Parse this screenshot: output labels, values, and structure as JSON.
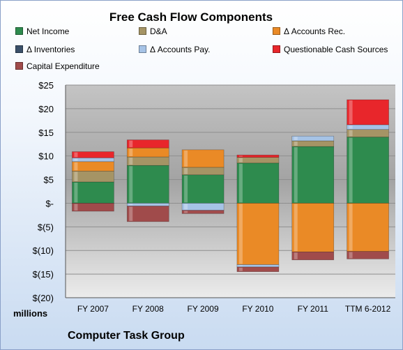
{
  "chart_data": {
    "type": "bar",
    "stacked": true,
    "title": "Free Cash Flow Components",
    "subtitle": "Computer Task Group",
    "units_label": "millions",
    "categories": [
      "FY 2007",
      "FY 2008",
      "FY 2009",
      "FY 2010",
      "FY 2011",
      "TTM 6-2012"
    ],
    "ylim": [
      -20,
      25
    ],
    "yticks": [
      25,
      20,
      15,
      10,
      5,
      0,
      -5,
      -10,
      -15,
      -20
    ],
    "ytick_labels": [
      "$25",
      "$20",
      "$15",
      "$10",
      "$5",
      "$-",
      "$(5)",
      "$(10)",
      "$(15)",
      "$(20)"
    ],
    "grid": true,
    "legend_position": "top",
    "series": [
      {
        "name": "Net Income",
        "color": "#2e8b4e",
        "values": [
          4.5,
          8.0,
          6.0,
          8.5,
          12.0,
          14.0
        ]
      },
      {
        "name": "D&A",
        "color": "#a59465",
        "values": [
          2.3,
          1.8,
          1.6,
          1.2,
          1.2,
          1.6
        ]
      },
      {
        "name": "Δ Accounts Rec.",
        "color": "#ea8a26",
        "values": [
          2.0,
          1.9,
          3.7,
          -13.0,
          -10.3,
          -10.2
        ]
      },
      {
        "name": "Δ Inventories",
        "color": "#3b5069",
        "values": [
          0,
          0,
          0,
          0,
          0,
          0
        ]
      },
      {
        "name": "Δ Accounts Pay.",
        "color": "#a6c3e6",
        "values": [
          0.8,
          -0.6,
          -1.5,
          -0.5,
          1.0,
          1.0
        ]
      },
      {
        "name": "Questionable Cash Sources",
        "color": "#e8262b",
        "values": [
          1.3,
          1.7,
          0,
          0.5,
          0,
          5.3
        ]
      },
      {
        "name": "Capital Expenditure",
        "color": "#a04b4b",
        "values": [
          -1.7,
          -3.3,
          -0.7,
          -1.0,
          -1.7,
          -1.6
        ]
      }
    ]
  }
}
